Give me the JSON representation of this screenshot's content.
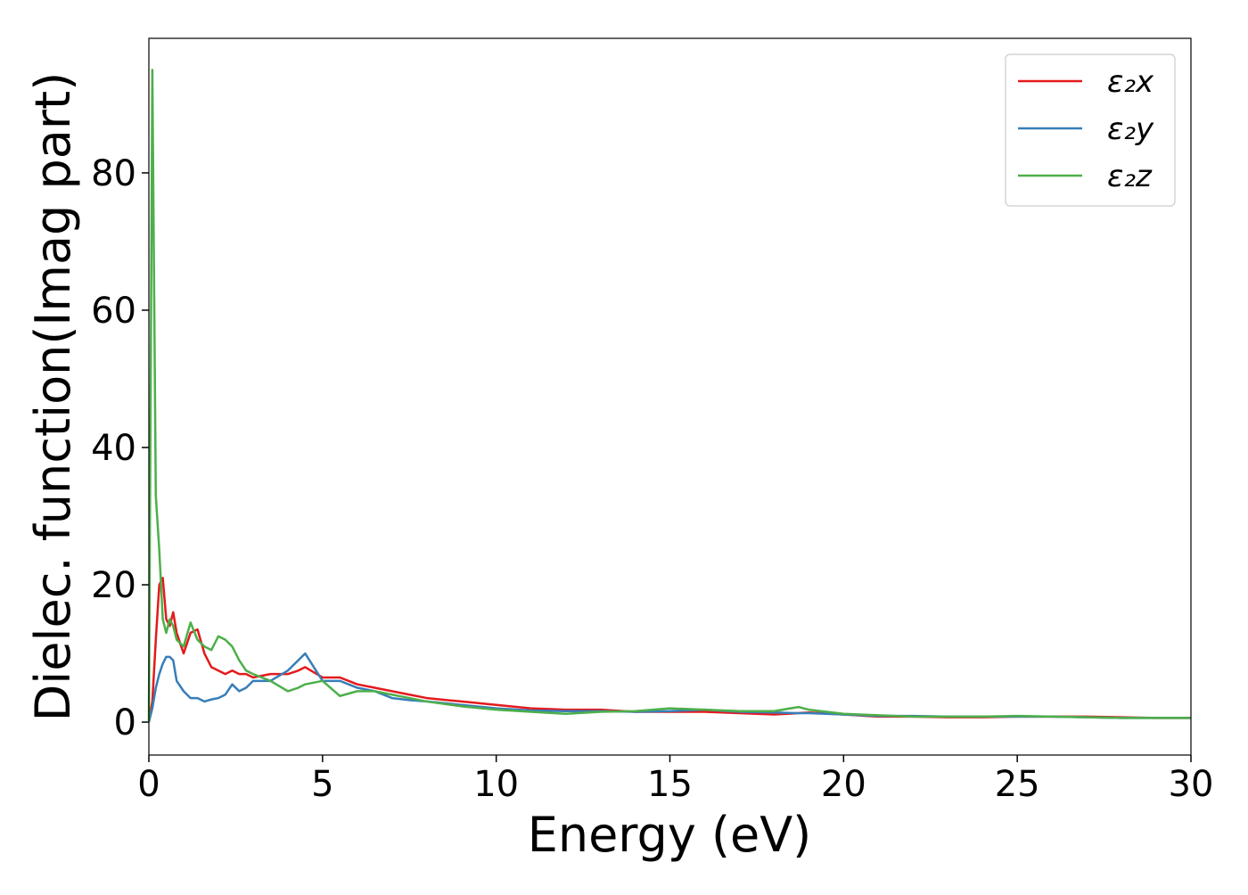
{
  "chart_data": {
    "type": "line",
    "xlabel": "Energy (eV)",
    "ylabel": "Dielec. function(Imag part)",
    "x": [
      0,
      0.1,
      0.2,
      0.3,
      0.4,
      0.5,
      0.6,
      0.7,
      0.8,
      1.0,
      1.2,
      1.4,
      1.6,
      1.8,
      2.0,
      2.2,
      2.4,
      2.6,
      2.8,
      3.0,
      3.5,
      4.0,
      4.3,
      4.5,
      5.0,
      5.5,
      6.0,
      6.5,
      7.0,
      7.5,
      8,
      9,
      10,
      11,
      12,
      13,
      14,
      15,
      16,
      17,
      18,
      18.7,
      19,
      20,
      21,
      22,
      23,
      24,
      25,
      26,
      27,
      28,
      29,
      30
    ],
    "series": [
      {
        "name": "ε₂x",
        "color": "#e41a1c",
        "values": [
          0,
          3,
          12,
          20,
          21,
          15,
          14,
          16,
          13,
          10,
          13,
          13.5,
          10,
          8,
          7.5,
          7,
          7.5,
          7,
          7,
          6.5,
          7,
          7,
          7.5,
          8,
          6.5,
          6.5,
          5.5,
          5,
          4.5,
          4,
          3.5,
          3,
          2.5,
          2,
          1.8,
          1.8,
          1.5,
          1.5,
          1.5,
          1.3,
          1.1,
          1.3,
          1.4,
          1.1,
          0.8,
          0.8,
          0.7,
          0.7,
          0.8,
          0.8,
          0.8,
          0.7,
          0.6,
          0.6
        ]
      },
      {
        "name": "ε₂y",
        "color": "#377eb8",
        "values": [
          0,
          2,
          5,
          7,
          8.5,
          9.5,
          9.5,
          9,
          6,
          4.5,
          3.5,
          3.5,
          3,
          3.3,
          3.5,
          4,
          5.5,
          4.5,
          5,
          6,
          6,
          7.5,
          9,
          10,
          6,
          6,
          5,
          4.5,
          3.5,
          3.2,
          3,
          2.5,
          2,
          1.7,
          1.6,
          1.6,
          1.5,
          1.6,
          1.8,
          1.5,
          1.4,
          1.3,
          1.3,
          1.1,
          0.9,
          0.9,
          0.8,
          0.8,
          0.8,
          0.8,
          0.7,
          0.6,
          0.6,
          0.6
        ]
      },
      {
        "name": "ε₂z",
        "color": "#4daf4a",
        "values": [
          0,
          95,
          33,
          25,
          15,
          13,
          15,
          14,
          12,
          11,
          14.5,
          12,
          11,
          10.5,
          12.5,
          12,
          11,
          9,
          7.5,
          7,
          6,
          4.5,
          5,
          5.5,
          6,
          3.8,
          4.5,
          4.5,
          4,
          3.5,
          3,
          2.3,
          1.8,
          1.5,
          1.2,
          1.5,
          1.6,
          2,
          1.8,
          1.6,
          1.6,
          2.2,
          1.8,
          1.2,
          1,
          0.8,
          0.8,
          0.8,
          0.9,
          0.8,
          0.7,
          0.6,
          0.6,
          0.6
        ]
      }
    ],
    "xlim": [
      0,
      30
    ],
    "xticks": [
      0,
      5,
      10,
      15,
      20,
      25,
      30
    ],
    "ylim": [
      -4.8,
      99.6
    ],
    "yticks": [
      0,
      20,
      40,
      60,
      80
    ],
    "legend": "upper right"
  }
}
